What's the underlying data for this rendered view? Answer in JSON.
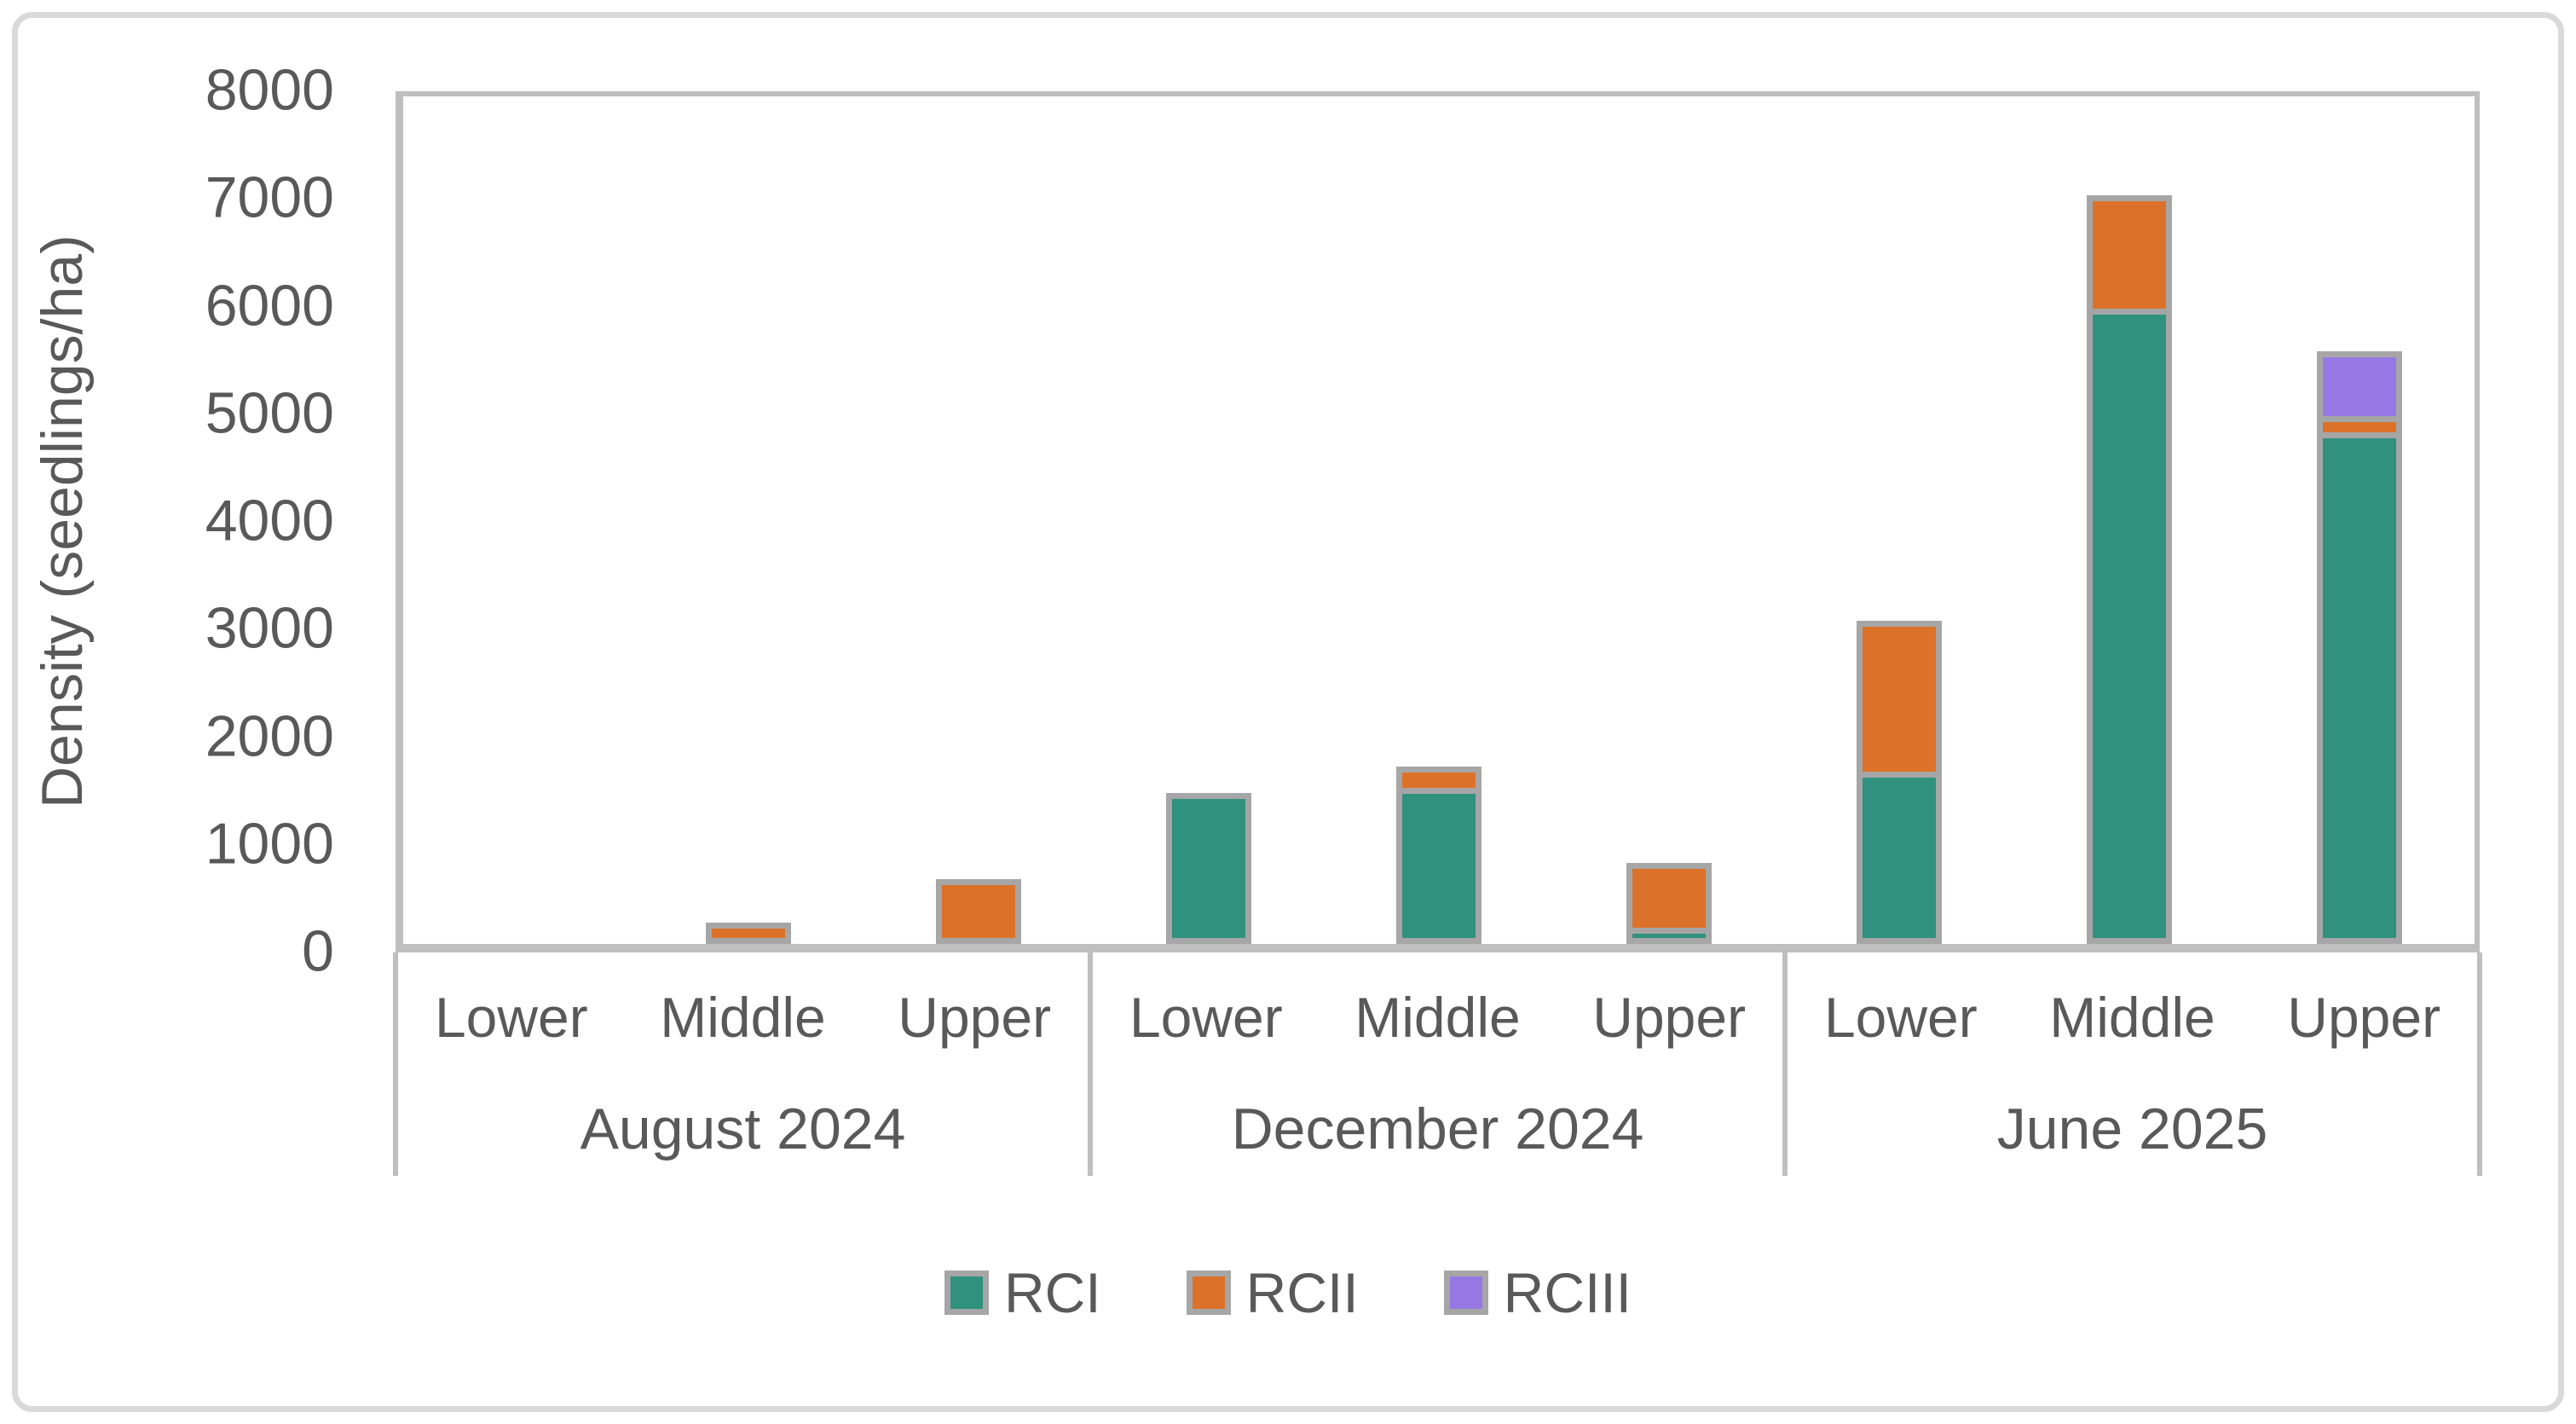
{
  "chart_data": {
    "type": "bar",
    "stacked": true,
    "title": "",
    "ylabel": "Density (seedlings/ha)",
    "xlabel": "",
    "ylim": [
      0,
      8000
    ],
    "yticks": [
      0,
      1000,
      2000,
      3000,
      4000,
      5000,
      6000,
      7000,
      8000
    ],
    "grid": false,
    "legend_position": "bottom-center",
    "categories": [
      "Lower",
      "Middle",
      "Upper"
    ],
    "group_labels": [
      "August 2024",
      "December 2024",
      "June 2025"
    ],
    "series": [
      {
        "name": "RCI",
        "color": "#2F917E",
        "values": [
          [
            0,
            0,
            0
          ],
          [
            1400,
            1450,
            150
          ],
          [
            1600,
            5900,
            4750
          ]
        ]
      },
      {
        "name": "RCII",
        "color": "#DC7229",
        "values": [
          [
            0,
            200,
            600
          ],
          [
            0,
            200,
            600
          ],
          [
            1400,
            1050,
            150
          ]
        ]
      },
      {
        "name": "RCIII",
        "color": "#9678E4",
        "values": [
          [
            0,
            0,
            0
          ],
          [
            0,
            0,
            0
          ],
          [
            0,
            0,
            600
          ]
        ]
      }
    ]
  },
  "colors": {
    "segment_border": "#A6A6A6",
    "axis_line": "#BFBFBF",
    "text": "#595959",
    "frame_border": "#D9D9D9",
    "background": "#FFFFFF"
  }
}
